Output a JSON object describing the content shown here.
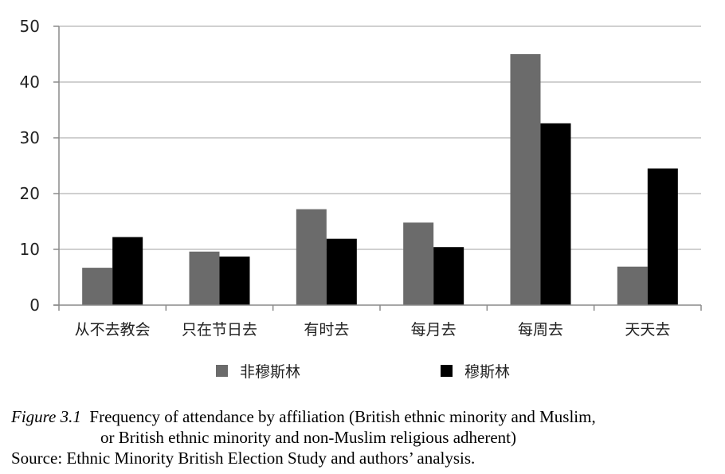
{
  "chart_data": {
    "type": "bar",
    "categories": [
      "从不去教会",
      "只在节日去",
      "有时去",
      "每月去",
      "每周去",
      "天天去"
    ],
    "series": [
      {
        "name": "非穆斯林",
        "color": "#6b6b6b",
        "values": [
          6.7,
          9.6,
          17.2,
          14.8,
          45.0,
          6.9
        ]
      },
      {
        "name": "穆斯林",
        "color": "#000000",
        "values": [
          12.2,
          8.7,
          11.9,
          10.4,
          32.6,
          24.5
        ]
      }
    ],
    "ylim": [
      0,
      50
    ],
    "yticks": [
      0,
      10,
      20,
      30,
      40,
      50
    ],
    "ytick_labels": [
      "0",
      "10",
      "20",
      "30",
      "40",
      "50"
    ],
    "grid": true,
    "legend_position": "bottom",
    "xlabel": "",
    "ylabel": ""
  },
  "caption": {
    "figure_label": "Figure 3.1",
    "line1": "Frequency of attendance by affiliation (British ethnic minority and Muslim,",
    "line2": "or British ethnic minority and non-Muslim religious adherent)",
    "source": "Source: Ethnic Minority British Election Study and authors’ analysis."
  }
}
